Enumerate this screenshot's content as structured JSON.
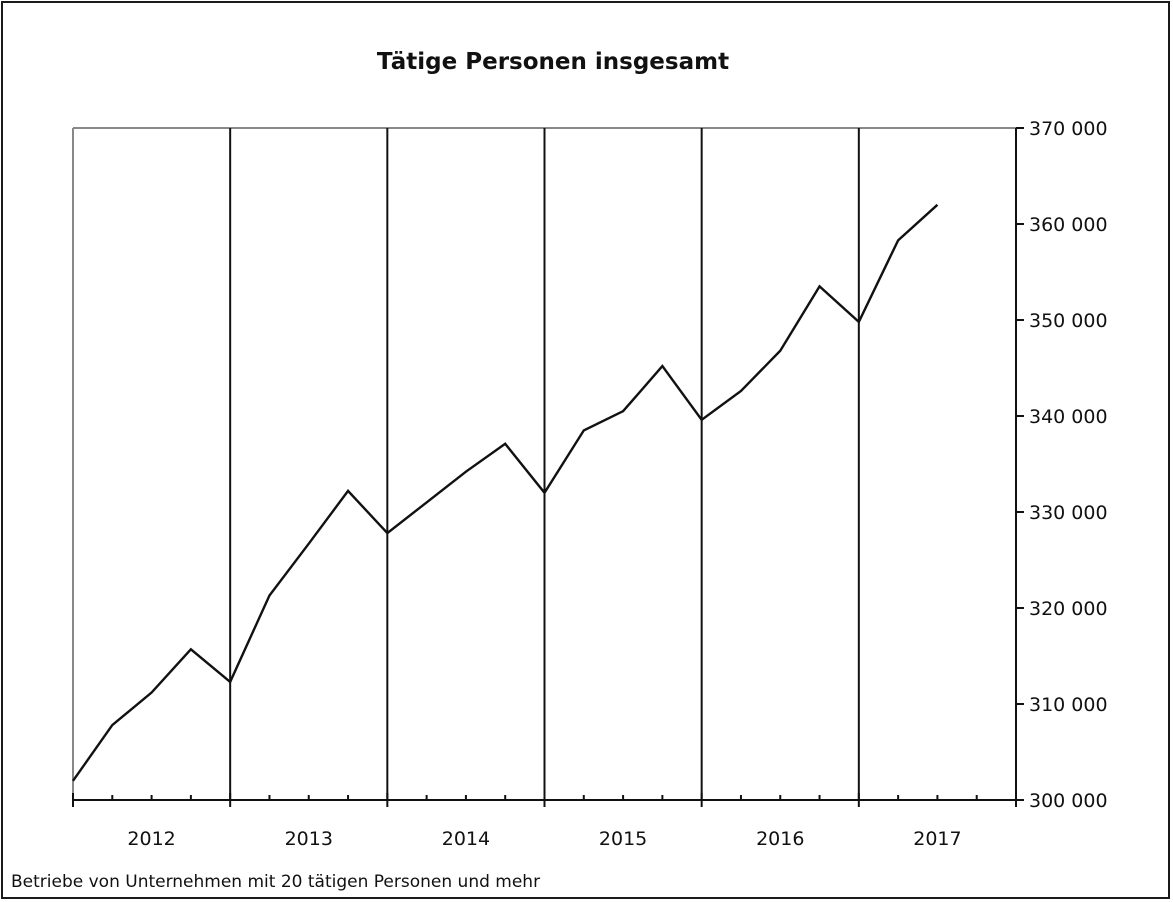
{
  "title": "Tätige Personen insgesamt",
  "footnote": "Betriebe von Unternehmen mit 20 tätigen Personen und mehr",
  "colors": {
    "line": "#111111",
    "frame_top": "#888888",
    "frame_left": "#888888",
    "grid": "#111111"
  },
  "chart_data": {
    "type": "line",
    "title": "Tätige Personen insgesamt",
    "xlabel": "",
    "ylabel": "",
    "y_axis_side": "right",
    "ylim": [
      300000,
      370000
    ],
    "y_ticks": [
      300000,
      310000,
      320000,
      330000,
      340000,
      350000,
      360000,
      370000
    ],
    "y_tick_labels": [
      "300 000",
      "310 000",
      "320 000",
      "330 000",
      "340 000",
      "350 000",
      "360 000",
      "370 000"
    ],
    "year_labels": [
      "2012",
      "2013",
      "2014",
      "2015",
      "2016",
      "2017"
    ],
    "x_period_count": 24,
    "grid": "vertical lines at year boundaries",
    "series": [
      {
        "values": [
          302000,
          307800,
          311200,
          315700,
          312300,
          321300,
          326700,
          332200,
          327800,
          331000,
          334200,
          337100,
          332000,
          338500,
          340500,
          345200,
          339600,
          342600,
          346800,
          353500,
          349800,
          358300,
          362000
        ]
      }
    ]
  }
}
